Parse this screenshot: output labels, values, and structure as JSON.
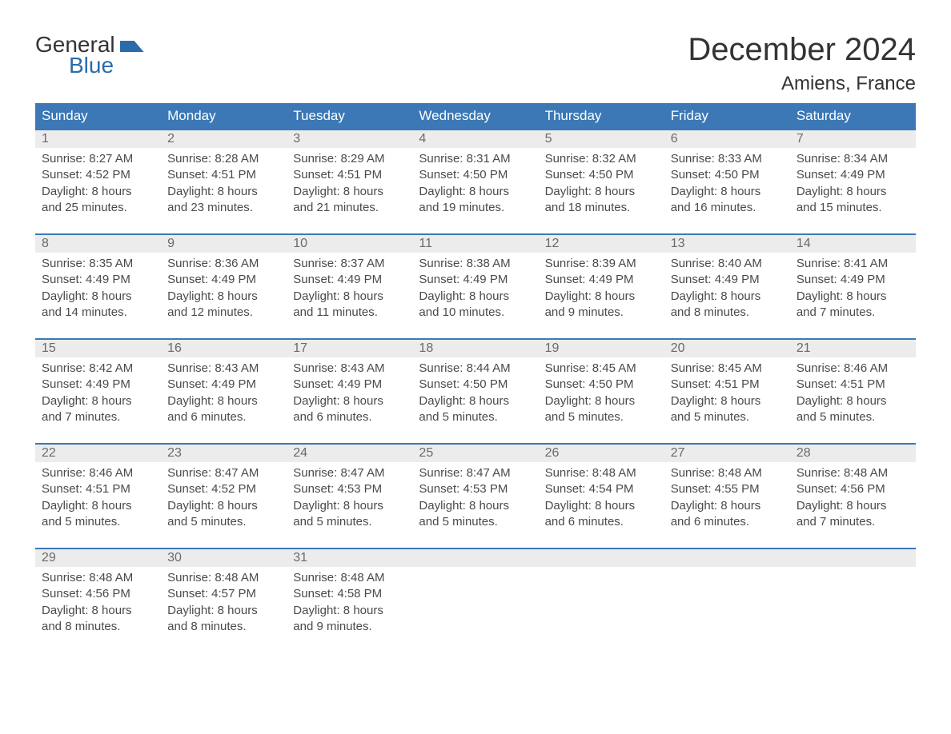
{
  "logo": {
    "word1": "General",
    "word2": "Blue"
  },
  "title": "December 2024",
  "location": "Amiens, France",
  "weekdays": [
    "Sunday",
    "Monday",
    "Tuesday",
    "Wednesday",
    "Thursday",
    "Friday",
    "Saturday"
  ],
  "colors": {
    "header_bg": "#3b78b5",
    "header_text": "#ffffff",
    "daynum_bg": "#ececec",
    "daynum_text": "#6a6a6a",
    "body_text": "#4a4a4a",
    "rule": "#3b78b5",
    "logo_blue": "#2b6bab",
    "title_text": "#333333"
  },
  "weeks": [
    [
      {
        "n": "1",
        "sunrise": "8:27 AM",
        "sunset": "4:52 PM",
        "daylight": "8 hours and 25 minutes."
      },
      {
        "n": "2",
        "sunrise": "8:28 AM",
        "sunset": "4:51 PM",
        "daylight": "8 hours and 23 minutes."
      },
      {
        "n": "3",
        "sunrise": "8:29 AM",
        "sunset": "4:51 PM",
        "daylight": "8 hours and 21 minutes."
      },
      {
        "n": "4",
        "sunrise": "8:31 AM",
        "sunset": "4:50 PM",
        "daylight": "8 hours and 19 minutes."
      },
      {
        "n": "5",
        "sunrise": "8:32 AM",
        "sunset": "4:50 PM",
        "daylight": "8 hours and 18 minutes."
      },
      {
        "n": "6",
        "sunrise": "8:33 AM",
        "sunset": "4:50 PM",
        "daylight": "8 hours and 16 minutes."
      },
      {
        "n": "7",
        "sunrise": "8:34 AM",
        "sunset": "4:49 PM",
        "daylight": "8 hours and 15 minutes."
      }
    ],
    [
      {
        "n": "8",
        "sunrise": "8:35 AM",
        "sunset": "4:49 PM",
        "daylight": "8 hours and 14 minutes."
      },
      {
        "n": "9",
        "sunrise": "8:36 AM",
        "sunset": "4:49 PM",
        "daylight": "8 hours and 12 minutes."
      },
      {
        "n": "10",
        "sunrise": "8:37 AM",
        "sunset": "4:49 PM",
        "daylight": "8 hours and 11 minutes."
      },
      {
        "n": "11",
        "sunrise": "8:38 AM",
        "sunset": "4:49 PM",
        "daylight": "8 hours and 10 minutes."
      },
      {
        "n": "12",
        "sunrise": "8:39 AM",
        "sunset": "4:49 PM",
        "daylight": "8 hours and 9 minutes."
      },
      {
        "n": "13",
        "sunrise": "8:40 AM",
        "sunset": "4:49 PM",
        "daylight": "8 hours and 8 minutes."
      },
      {
        "n": "14",
        "sunrise": "8:41 AM",
        "sunset": "4:49 PM",
        "daylight": "8 hours and 7 minutes."
      }
    ],
    [
      {
        "n": "15",
        "sunrise": "8:42 AM",
        "sunset": "4:49 PM",
        "daylight": "8 hours and 7 minutes."
      },
      {
        "n": "16",
        "sunrise": "8:43 AM",
        "sunset": "4:49 PM",
        "daylight": "8 hours and 6 minutes."
      },
      {
        "n": "17",
        "sunrise": "8:43 AM",
        "sunset": "4:49 PM",
        "daylight": "8 hours and 6 minutes."
      },
      {
        "n": "18",
        "sunrise": "8:44 AM",
        "sunset": "4:50 PM",
        "daylight": "8 hours and 5 minutes."
      },
      {
        "n": "19",
        "sunrise": "8:45 AM",
        "sunset": "4:50 PM",
        "daylight": "8 hours and 5 minutes."
      },
      {
        "n": "20",
        "sunrise": "8:45 AM",
        "sunset": "4:51 PM",
        "daylight": "8 hours and 5 minutes."
      },
      {
        "n": "21",
        "sunrise": "8:46 AM",
        "sunset": "4:51 PM",
        "daylight": "8 hours and 5 minutes."
      }
    ],
    [
      {
        "n": "22",
        "sunrise": "8:46 AM",
        "sunset": "4:51 PM",
        "daylight": "8 hours and 5 minutes."
      },
      {
        "n": "23",
        "sunrise": "8:47 AM",
        "sunset": "4:52 PM",
        "daylight": "8 hours and 5 minutes."
      },
      {
        "n": "24",
        "sunrise": "8:47 AM",
        "sunset": "4:53 PM",
        "daylight": "8 hours and 5 minutes."
      },
      {
        "n": "25",
        "sunrise": "8:47 AM",
        "sunset": "4:53 PM",
        "daylight": "8 hours and 5 minutes."
      },
      {
        "n": "26",
        "sunrise": "8:48 AM",
        "sunset": "4:54 PM",
        "daylight": "8 hours and 6 minutes."
      },
      {
        "n": "27",
        "sunrise": "8:48 AM",
        "sunset": "4:55 PM",
        "daylight": "8 hours and 6 minutes."
      },
      {
        "n": "28",
        "sunrise": "8:48 AM",
        "sunset": "4:56 PM",
        "daylight": "8 hours and 7 minutes."
      }
    ],
    [
      {
        "n": "29",
        "sunrise": "8:48 AM",
        "sunset": "4:56 PM",
        "daylight": "8 hours and 8 minutes."
      },
      {
        "n": "30",
        "sunrise": "8:48 AM",
        "sunset": "4:57 PM",
        "daylight": "8 hours and 8 minutes."
      },
      {
        "n": "31",
        "sunrise": "8:48 AM",
        "sunset": "4:58 PM",
        "daylight": "8 hours and 9 minutes."
      },
      null,
      null,
      null,
      null
    ]
  ],
  "labels": {
    "sunrise_prefix": "Sunrise: ",
    "sunset_prefix": "Sunset: ",
    "daylight_prefix": "Daylight: "
  }
}
